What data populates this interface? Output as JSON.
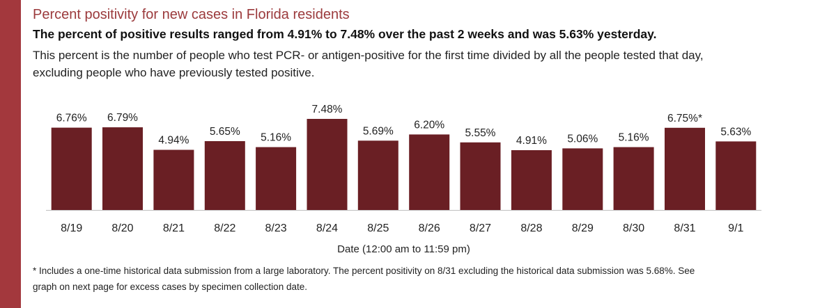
{
  "title": "Percent positivity for new cases in Florida residents",
  "subtitle": "The percent of positive results ranged from 4.91% to 7.48% over the past 2 weeks and was 5.63% yesterday.",
  "description": {
    "line1": "This percent is the number of people who test PCR- or antigen-positive for the first time divided by all the people tested that day,",
    "line2": "excluding people who have previously tested positive."
  },
  "footnote": {
    "line1": "* Includes a one-time historical data submission from a large laboratory. The percent positivity on 8/31 excluding the historical data submission was 5.68%. See",
    "line2": "graph on next page for excess cases by specimen collection date."
  },
  "colors": {
    "bar": "#6a1f24",
    "accent": "#a3383d",
    "title": "#9b3a3c"
  },
  "chart_data": {
    "type": "bar",
    "xlabel": "Date (12:00 am to 11:59 pm)",
    "ylabel": "",
    "categories": [
      "8/19",
      "8/20",
      "8/21",
      "8/22",
      "8/23",
      "8/24",
      "8/25",
      "8/26",
      "8/27",
      "8/28",
      "8/29",
      "8/30",
      "8/31",
      "9/1"
    ],
    "values": [
      6.76,
      6.79,
      4.94,
      5.65,
      5.16,
      7.48,
      5.69,
      6.2,
      5.55,
      4.91,
      5.06,
      5.16,
      6.75,
      5.63
    ],
    "data_labels": [
      "6.76%",
      "6.79%",
      "4.94%",
      "5.65%",
      "5.16%",
      "7.48%",
      "5.69%",
      "6.20%",
      "5.55%",
      "4.91%",
      "5.06%",
      "5.16%",
      "6.75%*",
      "5.63%"
    ],
    "ylim": [
      0,
      7.48
    ],
    "grid": false,
    "legend": "none"
  }
}
